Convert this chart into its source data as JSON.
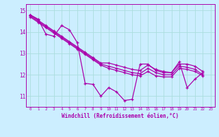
{
  "xlabel": "Windchill (Refroidissement éolien,°C)",
  "background_color": "#cceeff",
  "grid_color": "#aadddd",
  "line_color": "#aa00aa",
  "xlim_min": -0.5,
  "xlim_max": 23.5,
  "ylim_min": 10.5,
  "ylim_max": 15.3,
  "yticks": [
    11,
    12,
    13,
    14,
    15
  ],
  "xticks": [
    0,
    1,
    2,
    3,
    4,
    5,
    6,
    7,
    8,
    9,
    10,
    11,
    12,
    13,
    14,
    15,
    16,
    17,
    18,
    19,
    20,
    21,
    22,
    23
  ],
  "s1": [
    14.8,
    14.6,
    13.9,
    13.8,
    14.3,
    14.1,
    13.5,
    11.6,
    11.55,
    11.0,
    11.4,
    11.2,
    10.8,
    10.85,
    12.5,
    12.5,
    12.2,
    12.1,
    12.1,
    12.6,
    11.4,
    11.8,
    12.1,
    null
  ],
  "s2": [
    14.8,
    14.55,
    14.3,
    14.05,
    13.8,
    13.55,
    13.3,
    13.05,
    12.8,
    12.55,
    12.55,
    12.45,
    12.35,
    12.25,
    12.2,
    12.45,
    12.25,
    12.15,
    12.1,
    12.5,
    12.5,
    12.4,
    12.15,
    null
  ],
  "s3": [
    14.75,
    14.5,
    14.25,
    14.0,
    13.75,
    13.5,
    13.25,
    13.0,
    12.75,
    12.5,
    12.4,
    12.3,
    12.2,
    12.1,
    12.05,
    12.3,
    12.1,
    12.0,
    12.0,
    12.4,
    12.35,
    12.25,
    12.0,
    null
  ],
  "s4": [
    14.7,
    14.45,
    14.2,
    13.95,
    13.7,
    13.45,
    13.2,
    12.95,
    12.7,
    12.45,
    12.3,
    12.2,
    12.1,
    12.0,
    11.95,
    12.15,
    11.95,
    11.9,
    11.9,
    12.3,
    12.25,
    12.15,
    11.95,
    null
  ]
}
